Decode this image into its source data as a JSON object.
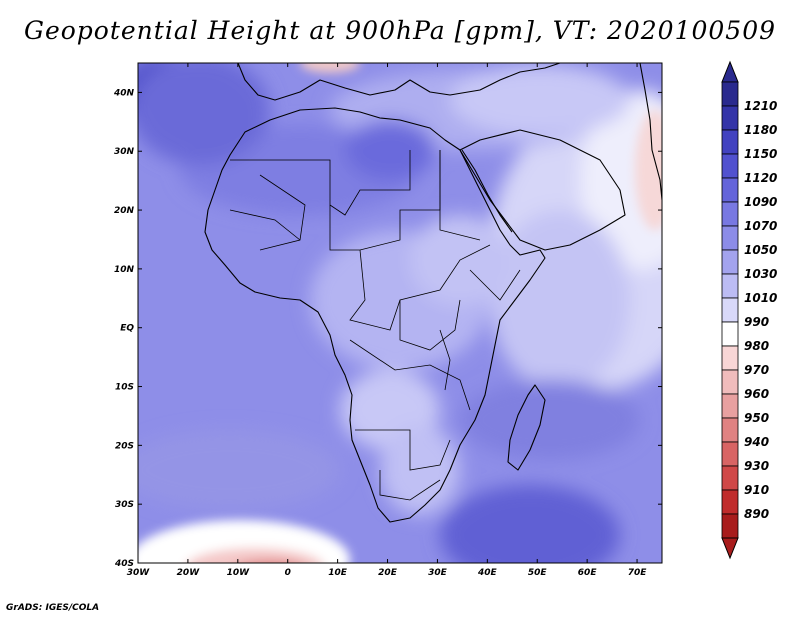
{
  "title": "Geopotential Height at 900hPa [gpm], VT: 2020100509",
  "credit": "GrADS: IGES/COLA",
  "map": {
    "lon_range": [
      -30,
      75
    ],
    "lat_range": [
      -40,
      45
    ],
    "lon_ticks": [
      "30W",
      "20W",
      "10W",
      "0",
      "10E",
      "20E",
      "30E",
      "40E",
      "50E",
      "60E",
      "70E"
    ],
    "lat_ticks": [
      "40S",
      "30S",
      "20S",
      "10S",
      "EQ",
      "10N",
      "20N",
      "30N",
      "40N"
    ]
  },
  "colorbar": {
    "levels": [
      "1210",
      "1180",
      "1150",
      "1120",
      "1090",
      "1070",
      "1050",
      "1030",
      "1010",
      "990",
      "980",
      "970",
      "960",
      "950",
      "940",
      "930",
      "910",
      "890"
    ],
    "colors": [
      "#2a2a8e",
      "#3434a8",
      "#4242c0",
      "#5151cf",
      "#6464da",
      "#7878e2",
      "#8c8ce8",
      "#a3a3ee",
      "#bcbcf4",
      "#d8d8f9",
      "#ffffff",
      "#f8d6d6",
      "#f0bcbc",
      "#e8a0a0",
      "#e08282",
      "#d86464",
      "#d04848",
      "#c02c2c",
      "#a81c1c"
    ]
  },
  "features": {
    "high_center": "40S 45E",
    "low_center": "40S 5W"
  }
}
